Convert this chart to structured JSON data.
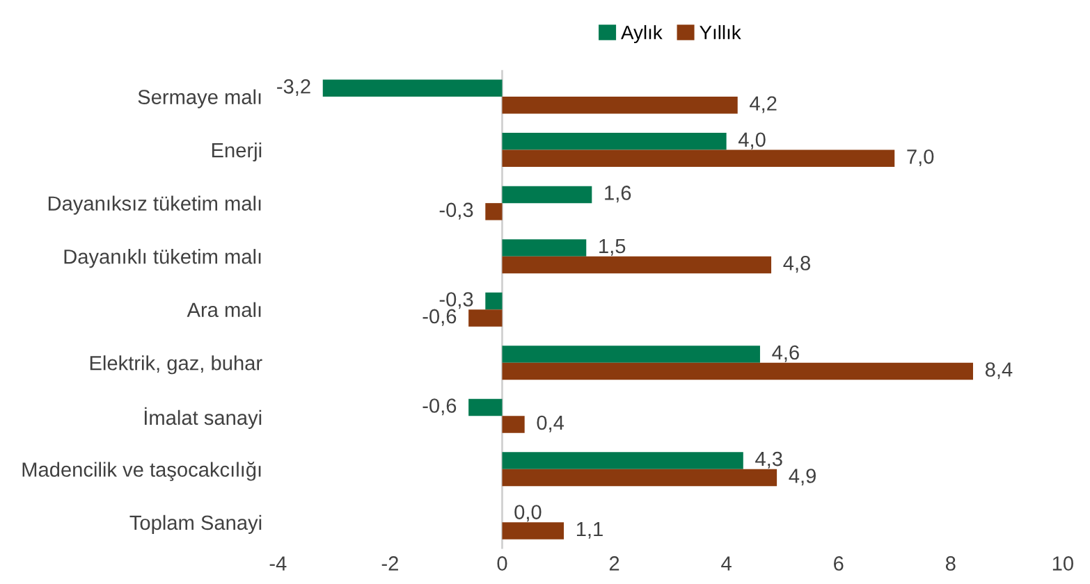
{
  "chart_data": {
    "type": "bar",
    "orientation": "horizontal",
    "categories": [
      "Sermaye malı",
      "Enerji",
      "Dayanıksız tüketim malı",
      "Dayanıklı tüketim malı",
      "Ara malı",
      "Elektrik, gaz, buhar",
      "İmalat sanayi",
      "Madencilik ve taşocakcılığı",
      "Toplam Sanayi"
    ],
    "series": [
      {
        "name": "Aylık",
        "color": "#00794f",
        "values": [
          -3.2,
          4.0,
          1.6,
          1.5,
          -0.3,
          4.6,
          -0.6,
          4.3,
          0.0
        ],
        "value_labels": [
          "-3,2",
          "4,0",
          "1,6",
          "1,5",
          "-0,3",
          "4,6",
          "-0,6",
          "4,3",
          "0,0"
        ]
      },
      {
        "name": "Yıllık",
        "color": "#8b3a0e",
        "values": [
          4.2,
          7.0,
          -0.3,
          4.8,
          -0.6,
          8.4,
          0.4,
          4.9,
          1.1
        ],
        "value_labels": [
          "4,2",
          "7,0",
          "-0,3",
          "4,8",
          "-0,6",
          "8,4",
          "0,4",
          "4,9",
          "1,1"
        ]
      }
    ],
    "xlim": [
      -4,
      10
    ],
    "xticks": [
      -4,
      -2,
      0,
      2,
      4,
      6,
      8,
      10
    ],
    "ref_lines": [
      {
        "axis": "x",
        "value": 0,
        "color": "#d0d0d0"
      }
    ],
    "grid": false,
    "legend": "top"
  }
}
